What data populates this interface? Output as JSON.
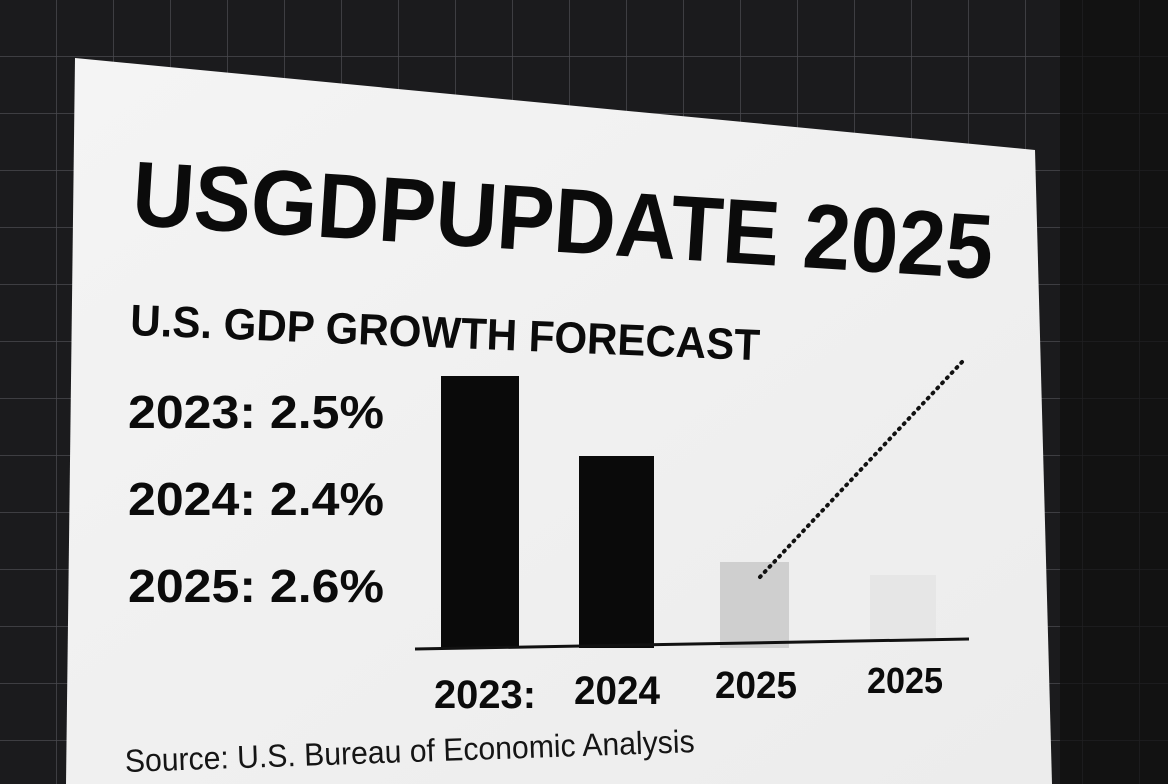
{
  "poster": {
    "title": "USGDPUPDATE 2025",
    "subtitle": "U.S. GDP GROWTH FORECAST",
    "figures": [
      "2023: 2.5%",
      "2024: 2.4%",
      "2025: 2.6%"
    ],
    "bar_labels": [
      "2023:",
      "2024",
      "2025",
      "2025"
    ],
    "source": "Source: U.S. Bureau of Economic Analysis"
  }
}
